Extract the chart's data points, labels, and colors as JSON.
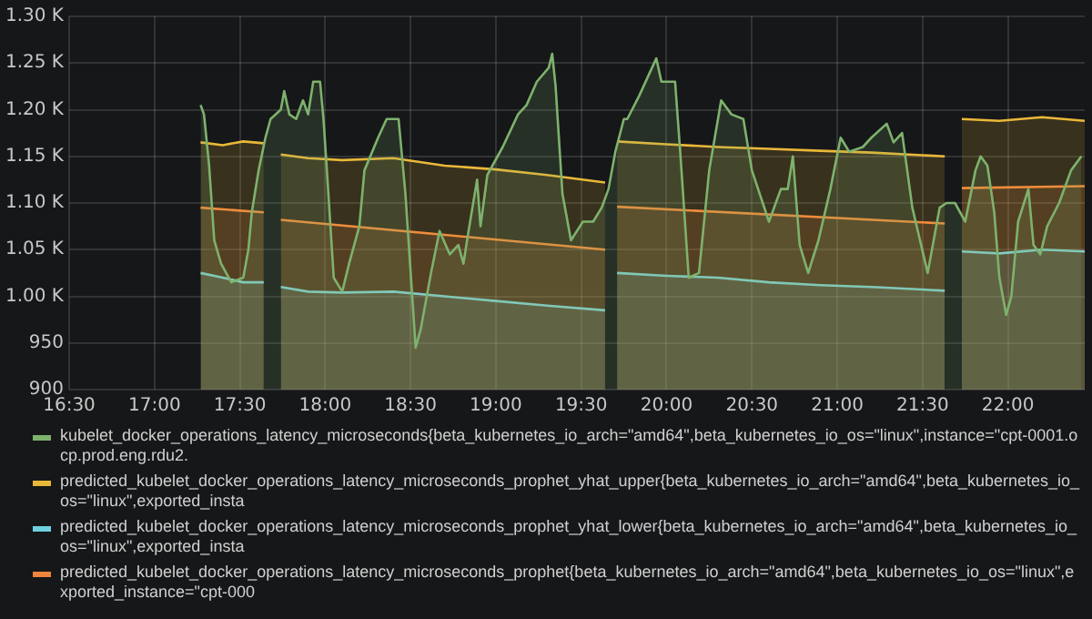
{
  "chart_data": {
    "type": "area",
    "xlim": [
      16.5,
      22.45
    ],
    "ylim": [
      900,
      1300
    ],
    "xticks": [
      {
        "value": 16.5,
        "label": "16:30"
      },
      {
        "value": 17,
        "label": "17:00"
      },
      {
        "value": 17.5,
        "label": "17:30"
      },
      {
        "value": 18,
        "label": "18:00"
      },
      {
        "value": 18.5,
        "label": "18:30"
      },
      {
        "value": 19,
        "label": "19:00"
      },
      {
        "value": 19.5,
        "label": "19:30"
      },
      {
        "value": 20,
        "label": "20:00"
      },
      {
        "value": 20.5,
        "label": "20:30"
      },
      {
        "value": 21,
        "label": "21:00"
      },
      {
        "value": 21.5,
        "label": "21:30"
      },
      {
        "value": 22,
        "label": "22:00"
      }
    ],
    "yticks": [
      900,
      950,
      {
        "value": 1000,
        "label": "1.00 K"
      },
      {
        "value": 1050,
        "label": "1.05 K"
      },
      {
        "value": 1100,
        "label": "1.10 K"
      },
      {
        "value": 1150,
        "label": "1.15 K"
      },
      {
        "value": 1200,
        "label": "1.20 K"
      },
      {
        "value": 1250,
        "label": "1.25 K"
      },
      {
        "value": 1300,
        "label": "1.30 K"
      }
    ],
    "grid": true,
    "legend": "bottom",
    "marker": "none",
    "line_style": "solid",
    "series": [
      {
        "name": "kubelet_docker_operations_latency_microseconds{beta_kubernetes_io_arch=\"amd64\",beta_kubernetes_io_os=\"linux\",instance=\"cpt-0001.ocp.prod.eng.rdu2.",
        "color": "#7eb26d",
        "x": [
          17.27,
          17.29,
          17.32,
          17.35,
          17.39,
          17.45,
          17.52,
          17.55,
          17.57,
          17.61,
          17.65,
          17.68,
          17.74,
          17.76,
          17.79,
          17.83,
          17.87,
          17.9,
          17.93,
          17.97,
          17.99,
          18.01,
          18.05,
          18.1,
          18.14,
          18.2,
          18.23,
          18.31,
          18.36,
          18.43,
          18.47,
          18.53,
          18.56,
          18.62,
          18.67,
          18.73,
          18.78,
          18.81,
          18.84,
          18.89,
          18.91,
          18.95,
          19.04,
          19.13,
          19.18,
          19.24,
          19.31,
          19.33,
          19.35,
          19.39,
          19.44,
          19.51,
          19.57,
          19.62,
          19.66,
          19.7,
          19.75,
          19.77,
          19.84,
          19.94,
          19.97,
          20.05,
          20.08,
          20.13,
          20.19,
          20.25,
          20.32,
          20.38,
          20.45,
          20.5,
          20.6,
          20.67,
          20.71,
          20.74,
          20.78,
          20.83,
          20.89,
          20.96,
          21.02,
          21.07,
          21.15,
          21.2,
          21.29,
          21.33,
          21.38,
          21.44,
          21.53,
          21.6,
          21.64,
          21.69,
          21.75,
          21.81,
          21.84,
          21.88,
          21.92,
          21.95,
          21.99,
          22.02,
          22.06,
          22.12,
          22.15,
          22.19,
          22.23,
          22.3,
          22.37,
          22.43
        ],
        "values": [
          1205,
          1195,
          1140,
          1060,
          1035,
          1015,
          1020,
          1050,
          1090,
          1135,
          1170,
          1190,
          1200,
          1220,
          1195,
          1190,
          1210,
          1195,
          1230,
          1230,
          1190,
          1135,
          1020,
          1005,
          1035,
          1075,
          1135,
          1170,
          1190,
          1190,
          1110,
          945,
          965,
          1025,
          1070,
          1045,
          1055,
          1035,
          1070,
          1125,
          1075,
          1130,
          1160,
          1195,
          1205,
          1230,
          1245,
          1260,
          1225,
          1110,
          1060,
          1080,
          1080,
          1095,
          1115,
          1155,
          1190,
          1190,
          1215,
          1255,
          1230,
          1230,
          1155,
          1020,
          1025,
          1135,
          1210,
          1195,
          1190,
          1135,
          1080,
          1115,
          1115,
          1150,
          1055,
          1025,
          1060,
          1115,
          1170,
          1155,
          1160,
          1170,
          1185,
          1165,
          1175,
          1095,
          1025,
          1095,
          1100,
          1100,
          1080,
          1135,
          1150,
          1140,
          1090,
          1020,
          980,
          1000,
          1080,
          1115,
          1055,
          1045,
          1075,
          1100,
          1135,
          1150
        ]
      },
      {
        "name": "predicted_kubelet_docker_operations_latency_microseconds_prophet_yhat_upper{beta_kubernetes_io_arch=\"amd64\",beta_kubernetes_io_os=\"linux\",exported_insta",
        "color": "#eab839",
        "x": [
          17.27,
          17.4,
          17.52,
          17.64,
          17.69,
          17.74,
          17.9,
          18.1,
          18.4,
          18.7,
          19.0,
          19.3,
          19.64,
          19.68,
          19.71,
          20.0,
          20.3,
          20.6,
          20.9,
          21.2,
          21.63,
          21.68,
          21.73,
          21.95,
          22.2,
          22.45
        ],
        "values": [
          1165,
          1162,
          1166,
          1164,
          null,
          1152,
          1148,
          1146,
          1148,
          1140,
          1136,
          1130,
          1122,
          null,
          1166,
          1163,
          1160,
          1158,
          1156,
          1154,
          1150,
          null,
          1190,
          1188,
          1192,
          1188
        ]
      },
      {
        "name": "predicted_kubelet_docker_operations_latency_microseconds_prophet_yhat_lower{beta_kubernetes_io_arch=\"amd64\",beta_kubernetes_io_os=\"linux\",exported_insta",
        "color": "#6ed0e0",
        "x": [
          17.27,
          17.4,
          17.52,
          17.64,
          17.69,
          17.74,
          17.9,
          18.1,
          18.4,
          18.7,
          19.0,
          19.3,
          19.64,
          19.68,
          19.71,
          20.0,
          20.3,
          20.6,
          20.9,
          21.2,
          21.63,
          21.68,
          21.73,
          21.95,
          22.2,
          22.45
        ],
        "values": [
          1025,
          1020,
          1015,
          1015,
          null,
          1010,
          1005,
          1004,
          1005,
          1000,
          995,
          990,
          985,
          null,
          1025,
          1022,
          1020,
          1015,
          1012,
          1010,
          1006,
          null,
          1048,
          1046,
          1050,
          1048
        ]
      },
      {
        "name": "predicted_kubelet_docker_operations_latency_microseconds_prophet{beta_kubernetes_io_arch=\"amd64\",beta_kubernetes_io_os=\"linux\",exported_instance=\"cpt-000",
        "color": "#ef843c",
        "x": [
          17.27,
          17.64,
          17.69,
          17.74,
          19.64,
          19.68,
          19.71,
          21.63,
          21.68,
          21.73,
          22.45
        ],
        "values": [
          1095,
          1090,
          null,
          1082,
          1050,
          null,
          1096,
          1078,
          null,
          1116,
          1118
        ]
      }
    ]
  }
}
